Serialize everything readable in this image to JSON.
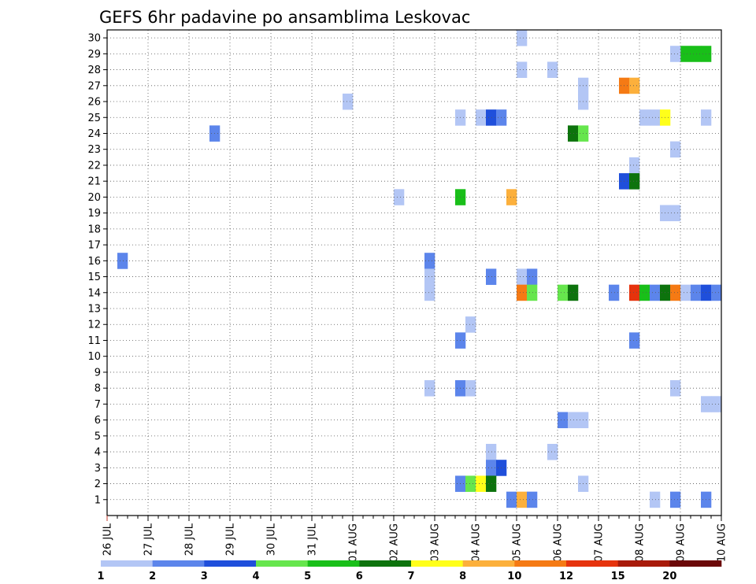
{
  "chart_data": {
    "type": "heatmap",
    "title": "GEFS 6hr padavine po ansamblima Leskovac",
    "xlabel": "",
    "ylabel": "",
    "x_tick_labels": [
      "26 JUL",
      "27 JUL",
      "28 JUL",
      "29 JUL",
      "30 JUL",
      "31 JUL",
      "01 AUG",
      "02 AUG",
      "03 AUG",
      "04 AUG",
      "05 AUG",
      "06 AUG",
      "07 AUG",
      "08 AUG",
      "09 AUG",
      "10 AUG"
    ],
    "y_tick_labels": [
      "1",
      "2",
      "3",
      "4",
      "5",
      "6",
      "7",
      "8",
      "9",
      "10",
      "11",
      "12",
      "13",
      "14",
      "15",
      "16",
      "17",
      "18",
      "19",
      "20",
      "21",
      "22",
      "23",
      "24",
      "25",
      "26",
      "27",
      "28",
      "29",
      "30"
    ],
    "x_step_hours": 6,
    "time_steps": 60,
    "ensemble_members": 30,
    "grid": true,
    "legend_placement": "bottom",
    "colorbar": {
      "labels": [
        "1",
        "2",
        "3",
        "4",
        "5",
        "6",
        "7",
        "8",
        "10",
        "12",
        "15",
        "20"
      ],
      "colors": [
        "#b3c6f5",
        "#5c85eb",
        "#1f4fdb",
        "#66e64d",
        "#19bf19",
        "#0d730d",
        "#ffff1a",
        "#fcb03c",
        "#f57a14",
        "#e6330d",
        "#a81a0a",
        "#6b0808"
      ]
    },
    "cells": [
      {
        "m": 30,
        "t": 41,
        "c": 0
      },
      {
        "m": 29,
        "t": 57,
        "c": 4
      },
      {
        "m": 29,
        "t": 58,
        "c": 4
      },
      {
        "m": 29,
        "t": 59,
        "c": 4
      },
      {
        "m": 29,
        "t": 56,
        "c": 0
      },
      {
        "m": 28,
        "t": 41,
        "c": 0
      },
      {
        "m": 28,
        "t": 44,
        "c": 0
      },
      {
        "m": 27,
        "t": 47,
        "c": 0
      },
      {
        "m": 27,
        "t": 51,
        "c": 8
      },
      {
        "m": 27,
        "t": 52,
        "c": 7
      },
      {
        "m": 26,
        "t": 47,
        "c": 0
      },
      {
        "m": 26,
        "t": 24,
        "c": 0
      },
      {
        "m": 25,
        "t": 35,
        "c": 0
      },
      {
        "m": 25,
        "t": 37,
        "c": 0
      },
      {
        "m": 25,
        "t": 38,
        "c": 2
      },
      {
        "m": 25,
        "t": 39,
        "c": 1
      },
      {
        "m": 25,
        "t": 53,
        "c": 0
      },
      {
        "m": 25,
        "t": 54,
        "c": 0
      },
      {
        "m": 25,
        "t": 55,
        "c": 6
      },
      {
        "m": 25,
        "t": 59,
        "c": 0
      },
      {
        "m": 24,
        "t": 11,
        "c": 1
      },
      {
        "m": 24,
        "t": 46,
        "c": 5
      },
      {
        "m": 24,
        "t": 47,
        "c": 3
      },
      {
        "m": 23,
        "t": 56,
        "c": 0
      },
      {
        "m": 22,
        "t": 52,
        "c": 0
      },
      {
        "m": 21,
        "t": 51,
        "c": 2
      },
      {
        "m": 21,
        "t": 52,
        "c": 5
      },
      {
        "m": 20,
        "t": 29,
        "c": 0
      },
      {
        "m": 20,
        "t": 35,
        "c": 4
      },
      {
        "m": 20,
        "t": 40,
        "c": 7
      },
      {
        "m": 19,
        "t": 55,
        "c": 0
      },
      {
        "m": 19,
        "t": 56,
        "c": 0
      },
      {
        "m": 16,
        "t": 2,
        "c": 1
      },
      {
        "m": 16,
        "t": 32,
        "c": 1
      },
      {
        "m": 15,
        "t": 32,
        "c": 0
      },
      {
        "m": 15,
        "t": 38,
        "c": 1
      },
      {
        "m": 15,
        "t": 41,
        "c": 0
      },
      {
        "m": 15,
        "t": 42,
        "c": 1
      },
      {
        "m": 14,
        "t": 32,
        "c": 0
      },
      {
        "m": 14,
        "t": 41,
        "c": 8
      },
      {
        "m": 14,
        "t": 42,
        "c": 3
      },
      {
        "m": 14,
        "t": 45,
        "c": 3
      },
      {
        "m": 14,
        "t": 46,
        "c": 5
      },
      {
        "m": 14,
        "t": 50,
        "c": 1
      },
      {
        "m": 14,
        "t": 52,
        "c": 9
      },
      {
        "m": 14,
        "t": 53,
        "c": 4
      },
      {
        "m": 14,
        "t": 54,
        "c": 1
      },
      {
        "m": 14,
        "t": 55,
        "c": 5
      },
      {
        "m": 14,
        "t": 56,
        "c": 8
      },
      {
        "m": 14,
        "t": 57,
        "c": 0
      },
      {
        "m": 14,
        "t": 58,
        "c": 1
      },
      {
        "m": 14,
        "t": 59,
        "c": 2
      },
      {
        "m": 14,
        "t": 60,
        "c": 1
      },
      {
        "m": 12,
        "t": 36,
        "c": 0
      },
      {
        "m": 11,
        "t": 35,
        "c": 1
      },
      {
        "m": 11,
        "t": 52,
        "c": 1
      },
      {
        "m": 8,
        "t": 32,
        "c": 0
      },
      {
        "m": 8,
        "t": 35,
        "c": 1
      },
      {
        "m": 8,
        "t": 36,
        "c": 0
      },
      {
        "m": 8,
        "t": 56,
        "c": 0
      },
      {
        "m": 7,
        "t": 59,
        "c": 0
      },
      {
        "m": 7,
        "t": 60,
        "c": 0
      },
      {
        "m": 6,
        "t": 45,
        "c": 1
      },
      {
        "m": 6,
        "t": 46,
        "c": 0
      },
      {
        "m": 6,
        "t": 47,
        "c": 0
      },
      {
        "m": 4,
        "t": 38,
        "c": 0
      },
      {
        "m": 4,
        "t": 44,
        "c": 0
      },
      {
        "m": 3,
        "t": 38,
        "c": 1
      },
      {
        "m": 3,
        "t": 39,
        "c": 2
      },
      {
        "m": 2,
        "t": 35,
        "c": 1
      },
      {
        "m": 2,
        "t": 36,
        "c": 3
      },
      {
        "m": 2,
        "t": 37,
        "c": 6
      },
      {
        "m": 2,
        "t": 38,
        "c": 5
      },
      {
        "m": 2,
        "t": 47,
        "c": 0
      },
      {
        "m": 1,
        "t": 40,
        "c": 1
      },
      {
        "m": 1,
        "t": 41,
        "c": 7
      },
      {
        "m": 1,
        "t": 42,
        "c": 1
      },
      {
        "m": 1,
        "t": 54,
        "c": 0
      },
      {
        "m": 1,
        "t": 56,
        "c": 1
      },
      {
        "m": 1,
        "t": 59,
        "c": 1
      }
    ]
  }
}
